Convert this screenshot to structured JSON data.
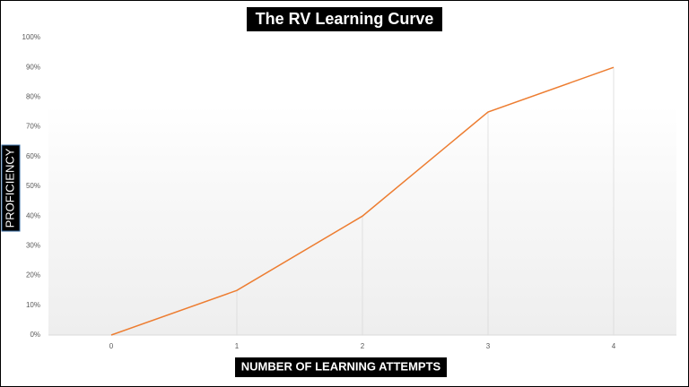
{
  "chart_data": {
    "type": "line",
    "title": "The RV Learning Curve",
    "x_label": "NUMBER OF LEARNING ATTEMPTS",
    "y_label": "PROFICIENCY",
    "x": [
      0,
      1,
      2,
      3,
      4
    ],
    "series": [
      {
        "name": "Proficiency",
        "color": "#ed7d31",
        "values": [
          0,
          15,
          40,
          75,
          90
        ]
      }
    ],
    "xlim": [
      -0.5,
      4.5
    ],
    "xticks": [
      0,
      1,
      2,
      3,
      4
    ],
    "ylim": [
      0,
      100
    ],
    "yticks": [
      {
        "value": 0,
        "label": "0%"
      },
      {
        "value": 10,
        "label": "10%"
      },
      {
        "value": 20,
        "label": "20%"
      },
      {
        "value": 30,
        "label": "30%"
      },
      {
        "value": 40,
        "label": "40%"
      },
      {
        "value": 50,
        "label": "50%"
      },
      {
        "value": 60,
        "label": "60%"
      },
      {
        "value": 70,
        "label": "70%"
      },
      {
        "value": 80,
        "label": "80%"
      },
      {
        "value": 90,
        "label": "90%"
      },
      {
        "value": 100,
        "label": "100%"
      }
    ],
    "grid": false,
    "drop_lines": true
  }
}
